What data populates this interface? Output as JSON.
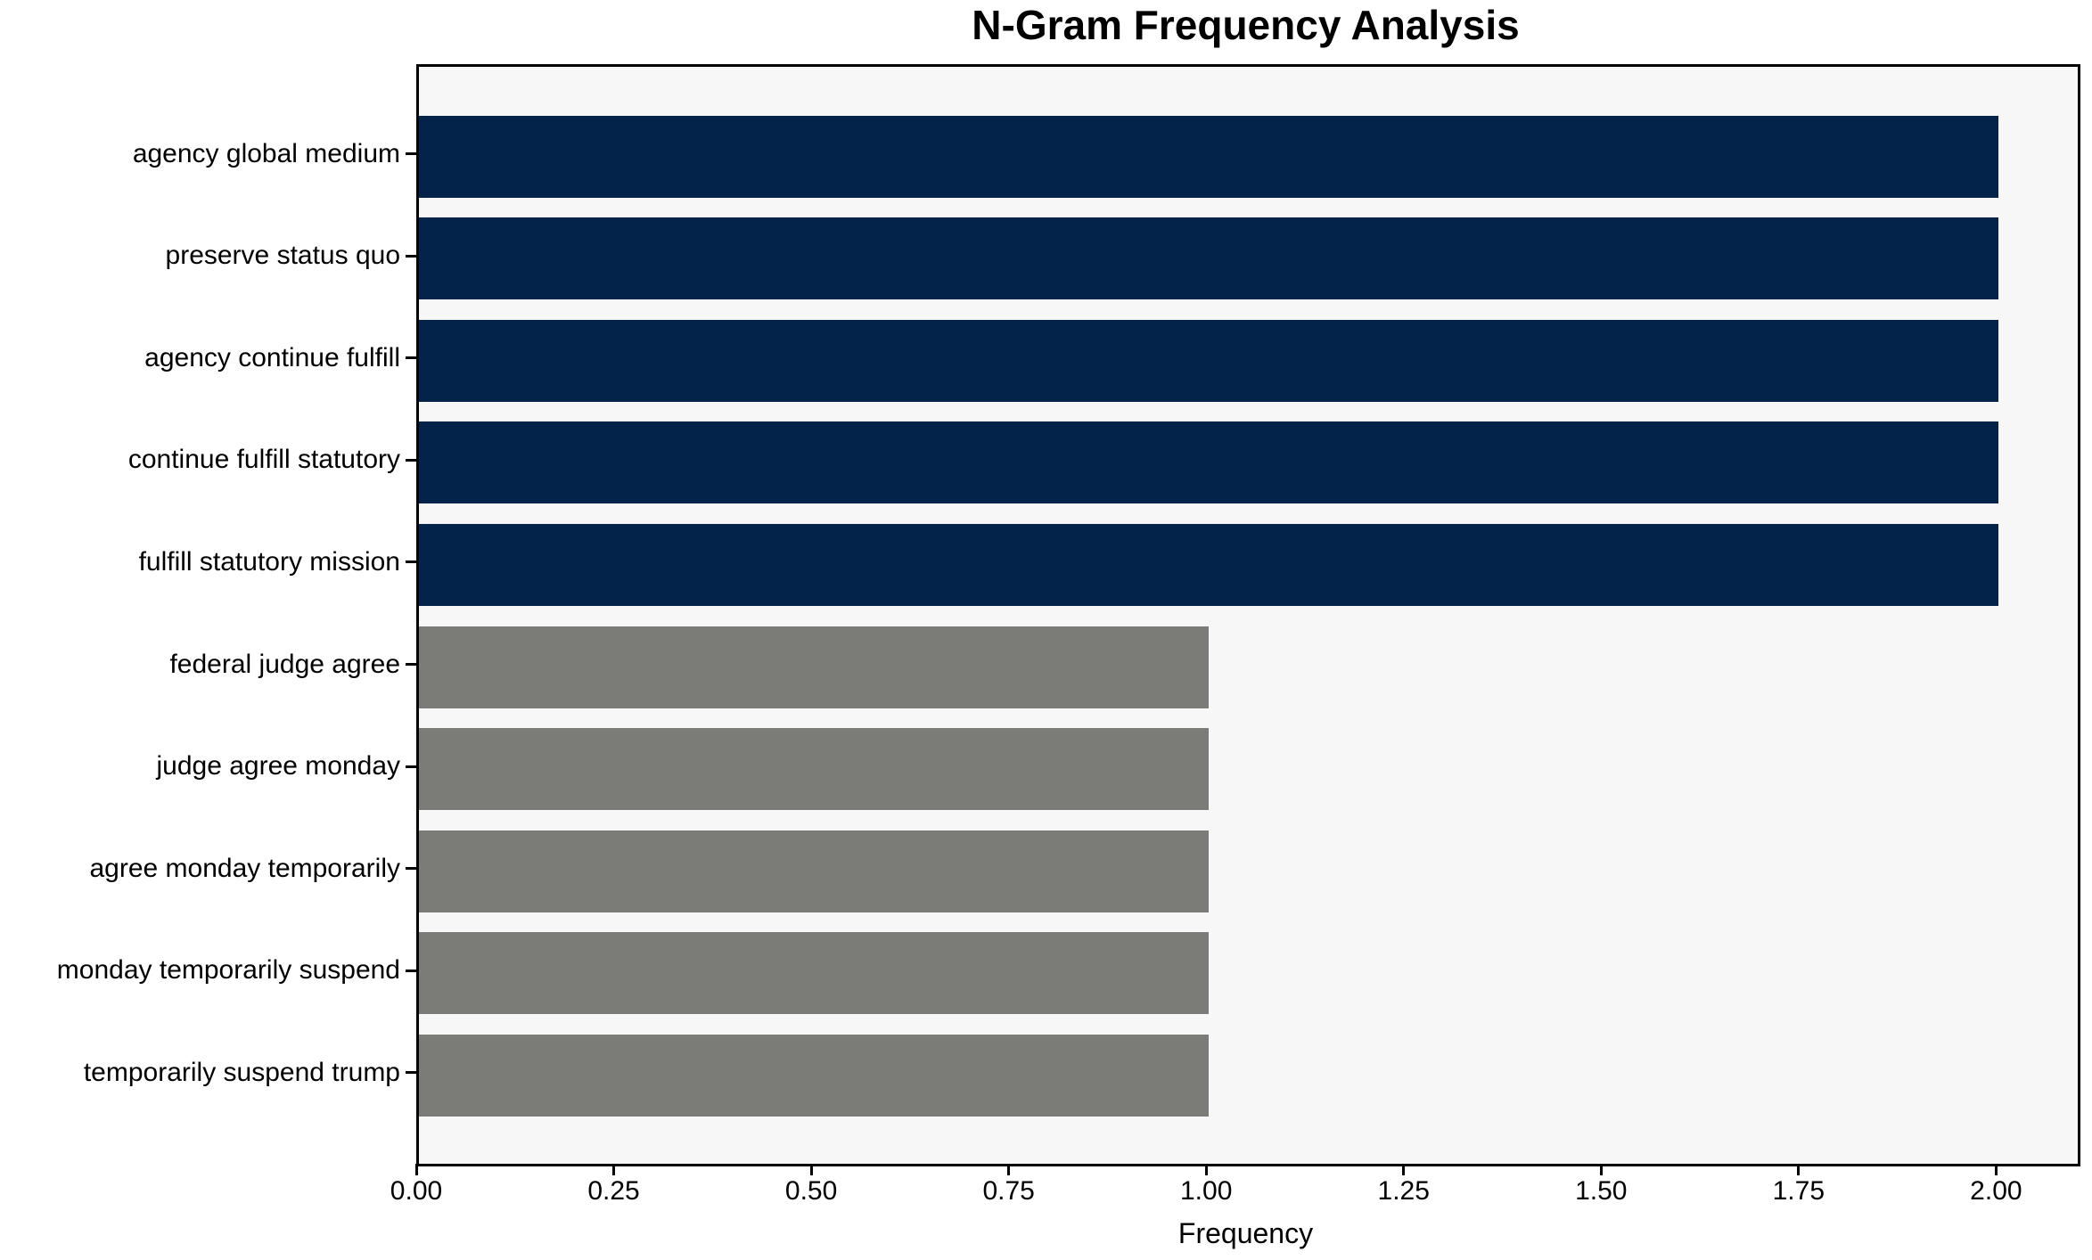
{
  "chart_data": {
    "type": "bar",
    "orientation": "horizontal",
    "title": "N-Gram Frequency Analysis",
    "xlabel": "Frequency",
    "ylabel": "",
    "categories": [
      "agency global medium",
      "preserve status quo",
      "agency continue fulfill",
      "continue fulfill statutory",
      "fulfill statutory mission",
      "federal judge agree",
      "judge agree monday",
      "agree monday temporarily",
      "monday temporarily suspend",
      "temporarily suspend trump"
    ],
    "values": [
      2,
      2,
      2,
      2,
      2,
      1,
      1,
      1,
      1,
      1
    ],
    "bar_colors": [
      "#03234b",
      "#03234b",
      "#03234b",
      "#03234b",
      "#03234b",
      "#7b7b78",
      "#7b7b78",
      "#7b7b78",
      "#7b7b78",
      "#7b7b78"
    ],
    "xlim": [
      0,
      2.1
    ],
    "xticks": [
      {
        "value": 0.0,
        "label": "0.00"
      },
      {
        "value": 0.25,
        "label": "0.25"
      },
      {
        "value": 0.5,
        "label": "0.50"
      },
      {
        "value": 0.75,
        "label": "0.75"
      },
      {
        "value": 1.0,
        "label": "1.00"
      },
      {
        "value": 1.25,
        "label": "1.25"
      },
      {
        "value": 1.5,
        "label": "1.50"
      },
      {
        "value": 1.75,
        "label": "1.75"
      },
      {
        "value": 2.0,
        "label": "2.00"
      }
    ],
    "grid": false,
    "legend": null,
    "colors": {
      "high_frequency_bar": "#03234b",
      "low_frequency_bar": "#7b7b78",
      "plot_background": "#f7f7f7",
      "figure_background": "#ffffff",
      "axis": "#000000",
      "text": "#000000"
    }
  }
}
